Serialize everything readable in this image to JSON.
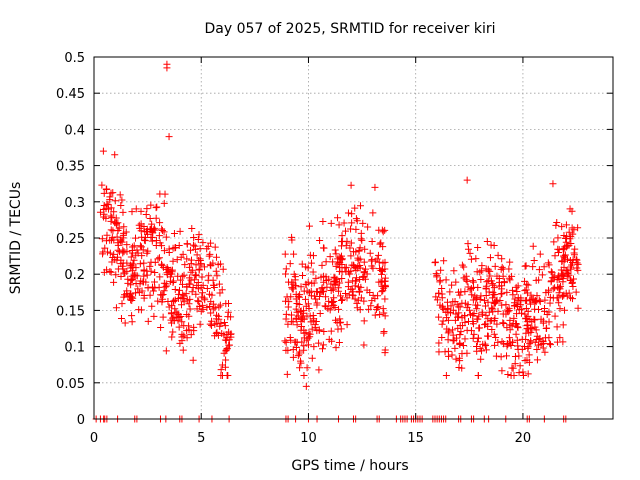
{
  "chart_data": {
    "type": "scatter",
    "title": "Day 057 of 2025, SRMTID for receiver kiri",
    "xlabel": "GPS time / hours",
    "ylabel": "SRMTID / TECUs",
    "xlim": [
      0,
      24.2
    ],
    "ylim": [
      0,
      0.5
    ],
    "grid": true,
    "marker": "+",
    "color": "#ff0000",
    "x_ticks": [
      0,
      5,
      10,
      15,
      20
    ],
    "x_tick_labels": [
      "0",
      "5",
      "10",
      "15",
      "20"
    ],
    "y_ticks": [
      0,
      0.05,
      0.1,
      0.15,
      0.2,
      0.25,
      0.3,
      0.35,
      0.4,
      0.45,
      0.5
    ],
    "y_tick_labels": [
      "0",
      "0.05",
      "0.1",
      "0.15",
      "0.2",
      "0.25",
      "0.3",
      "0.35",
      "0.4",
      "0.45",
      "0.5"
    ],
    "series": [
      {
        "name": "SRMTID",
        "segments": [
          {
            "x": [
              0.3,
              0.8,
              1.2,
              1.6,
              2.0,
              2.4,
              2.8,
              3.2,
              3.6,
              4.0,
              4.4,
              4.8,
              5.2,
              5.6,
              6.0,
              6.4
            ],
            "y": [
              0.28,
              0.26,
              0.22,
              0.2,
              0.21,
              0.22,
              0.23,
              0.22,
              0.18,
              0.17,
              0.18,
              0.2,
              0.19,
              0.16,
              0.13,
              0.12
            ]
          },
          {
            "x": [
              8.9,
              9.2,
              9.5,
              9.8,
              10.1,
              10.4,
              10.8,
              11.2,
              11.6,
              12.0,
              12.4,
              12.8,
              13.2,
              13.6
            ],
            "y": [
              0.17,
              0.16,
              0.15,
              0.13,
              0.16,
              0.15,
              0.17,
              0.18,
              0.19,
              0.22,
              0.21,
              0.2,
              0.19,
              0.16
            ]
          },
          {
            "x": [
              15.9,
              16.2,
              16.6,
              17.0,
              17.4,
              17.8,
              18.2,
              18.6,
              19.0,
              19.4,
              19.8,
              20.2,
              20.6,
              21.0,
              21.4,
              21.8,
              22.2,
              22.6
            ],
            "y": [
              0.21,
              0.17,
              0.14,
              0.13,
              0.16,
              0.15,
              0.15,
              0.17,
              0.16,
              0.13,
              0.12,
              0.13,
              0.14,
              0.15,
              0.17,
              0.18,
              0.22,
              0.2
            ]
          }
        ],
        "point_count": 1400,
        "outliers": [
          {
            "x": 3.4,
            "y": 0.49
          },
          {
            "x": 3.4,
            "y": 0.485
          },
          {
            "x": 3.5,
            "y": 0.39
          },
          {
            "x": 9.9,
            "y": 0.045
          },
          {
            "x": 20.0,
            "y": 0.065
          },
          {
            "x": 13.1,
            "y": 0.32
          },
          {
            "x": 17.4,
            "y": 0.33
          },
          {
            "x": 21.4,
            "y": 0.325
          }
        ],
        "zero_markers": [
          0.1,
          0.3,
          0.45,
          0.5,
          0.6,
          1.1,
          1.9,
          2.0,
          3.1,
          3.35,
          4.0,
          4.1,
          4.9,
          5.5,
          6.3,
          8.95,
          9.05,
          9.4,
          10.0,
          10.4,
          11.4,
          12.1,
          12.2,
          13.2,
          13.3,
          14.1,
          14.3,
          14.4,
          14.5,
          14.6,
          14.8,
          14.9,
          15.0,
          15.1,
          15.2,
          15.3,
          15.8,
          15.9,
          16.0,
          16.1,
          16.2,
          16.3,
          16.4,
          17.0,
          17.1,
          17.6,
          17.7,
          18.2,
          18.4,
          19.2,
          20.2,
          20.3,
          21.0,
          21.9,
          22.0
        ]
      }
    ]
  }
}
